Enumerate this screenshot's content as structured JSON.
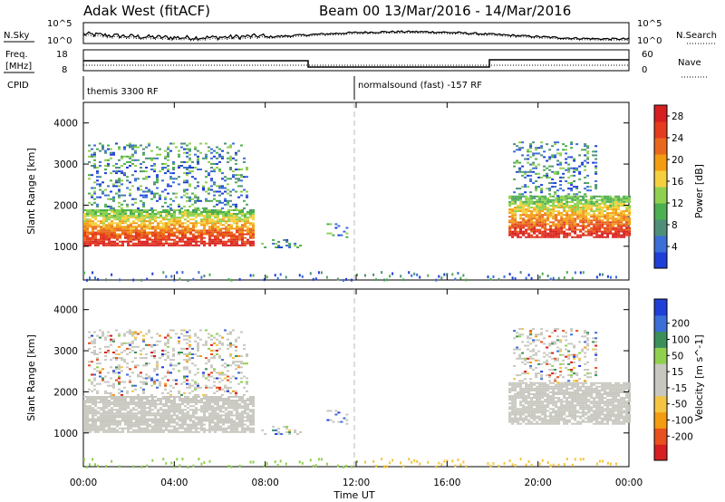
{
  "header": {
    "station": "Adak West (fitACF)",
    "beam_date": "Beam 00   13/Mar/2016 - 14/Mar/2016"
  },
  "noise_panel": {
    "left_label": "N.Sky",
    "right_label": "N.Search",
    "left_ticks": [
      "10^5",
      "10^0"
    ],
    "right_ticks": [
      "10^5",
      "10^0"
    ]
  },
  "freq_panel": {
    "left_label_line1": "Freq.",
    "left_label_line2": "[MHz]",
    "left_ticks": [
      "18",
      "8"
    ],
    "right_label": "Nave",
    "right_ticks": [
      "60",
      "0"
    ]
  },
  "cpid_panel": {
    "label": "CPID",
    "modes": [
      {
        "name": "themis 3300 RF",
        "start_hour": 0
      },
      {
        "name": "normalsound (fast) -157 RF",
        "start_hour": 12
      }
    ]
  },
  "colors": {
    "power": [
      "#1f3fd6",
      "#3c6ed8",
      "#4f8f7a",
      "#4caf50",
      "#8fd14f",
      "#f4d03f",
      "#f39c12",
      "#e8691e",
      "#e53b1e",
      "#d61f1f"
    ],
    "velocity": [
      "#d61f1f",
      "#e8501e",
      "#f39c12",
      "#f4c542",
      "#c8c8c0",
      "#c8c8c0",
      "#8fd14f",
      "#3c8f5a",
      "#3c6ed8",
      "#1f3fd6"
    ]
  },
  "chart_data": [
    {
      "type": "heatmap",
      "name": "power",
      "ylabel": "Slant Range [km]",
      "xlabel": "Time UT",
      "x_ticks": [
        "00:00",
        "04:00",
        "08:00",
        "12:00",
        "16:00",
        "20:00",
        "00:00"
      ],
      "x_range_hours": [
        0,
        24
      ],
      "y_ticks": [
        1000,
        2000,
        3000,
        4000
      ],
      "ylim": [
        180,
        4500
      ],
      "colorbar_label": "Power [dB]",
      "colorbar_ticks": [
        4,
        8,
        12,
        16,
        20,
        24,
        28
      ],
      "colorbar_range": [
        0,
        30
      ],
      "regions": [
        {
          "t0": 0,
          "t1": 7.5,
          "r0": 1000,
          "r1": 1900,
          "level": "strong"
        },
        {
          "t0": 0.2,
          "t1": 7.2,
          "r0": 1900,
          "r1": 3500,
          "level": "weak"
        },
        {
          "t0": 7.7,
          "t1": 9.6,
          "r0": 950,
          "r1": 1150,
          "level": "weak"
        },
        {
          "t0": 10.7,
          "t1": 11.6,
          "r0": 1200,
          "r1": 1550,
          "level": "weak"
        },
        {
          "t0": 18.7,
          "t1": 24,
          "r0": 1200,
          "r1": 2200,
          "level": "strong"
        },
        {
          "t0": 18.9,
          "t1": 22.5,
          "r0": 2200,
          "r1": 3550,
          "level": "weak"
        }
      ]
    },
    {
      "type": "heatmap",
      "name": "velocity",
      "ylabel": "Slant Range [km]",
      "xlabel": "Time UT",
      "x_ticks": [
        "00:00",
        "04:00",
        "08:00",
        "12:00",
        "16:00",
        "20:00",
        "00:00"
      ],
      "x_range_hours": [
        0,
        24
      ],
      "y_ticks": [
        1000,
        2000,
        3000,
        4000
      ],
      "ylim": [
        180,
        4500
      ],
      "colorbar_label": "Velocity [m s^-1]",
      "colorbar_ticks": [
        -200,
        -100,
        -50,
        -15,
        15,
        50,
        100,
        200
      ],
      "colorbar_range": [
        -250,
        250
      ]
    }
  ],
  "x_axis_title": "Time UT"
}
